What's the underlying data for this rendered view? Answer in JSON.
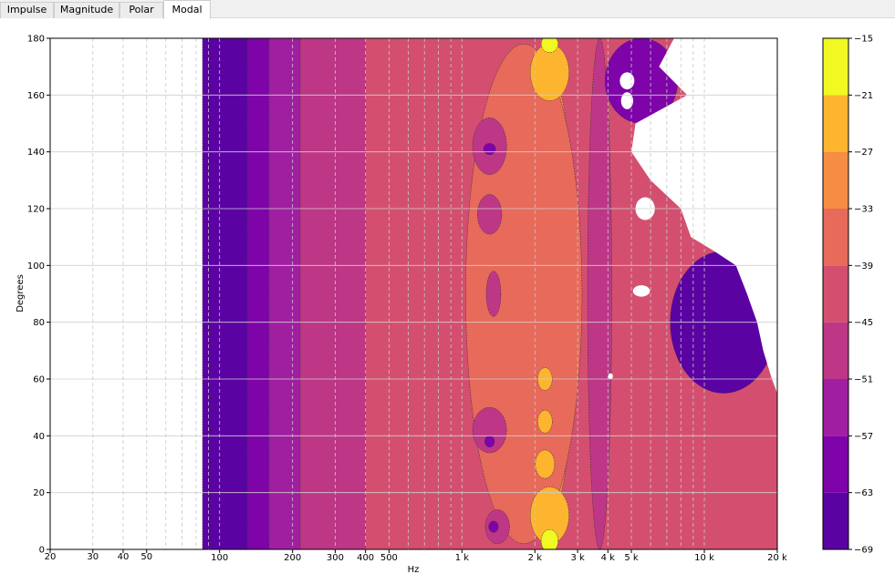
{
  "tabs": [
    {
      "label": "Impulse",
      "active": false
    },
    {
      "label": "Magnitude",
      "active": false
    },
    {
      "label": "Polar",
      "active": false
    },
    {
      "label": "Modal",
      "active": true
    }
  ],
  "chart_data": {
    "type": "heatmap",
    "subtype": "filled-contour",
    "xlabel": "Hz",
    "ylabel": "Degrees",
    "xscale": "log",
    "xlim": [
      20,
      20000
    ],
    "ylim": [
      0,
      180
    ],
    "x_ticks": [
      {
        "value": 20,
        "label": "20"
      },
      {
        "value": 30,
        "label": "30"
      },
      {
        "value": 40,
        "label": "40"
      },
      {
        "value": 50,
        "label": "50"
      },
      {
        "value": 100,
        "label": "100"
      },
      {
        "value": 200,
        "label": "200"
      },
      {
        "value": 300,
        "label": "300"
      },
      {
        "value": 400,
        "label": "400"
      },
      {
        "value": 500,
        "label": "500"
      },
      {
        "value": 1000,
        "label": "1 k"
      },
      {
        "value": 2000,
        "label": "2 k"
      },
      {
        "value": 3000,
        "label": "3 k"
      },
      {
        "value": 4000,
        "label": "4 k"
      },
      {
        "value": 5000,
        "label": "5 k"
      },
      {
        "value": 10000,
        "label": "10 k"
      },
      {
        "value": 20000,
        "label": "20 k"
      }
    ],
    "x_minor_grid": [
      60,
      70,
      80,
      90,
      600,
      700,
      800,
      900,
      6000,
      7000,
      8000,
      9000
    ],
    "y_ticks": [
      0,
      20,
      40,
      60,
      80,
      100,
      120,
      140,
      160,
      180
    ],
    "grid": true,
    "colorbar": {
      "levels": [
        -69,
        -63,
        -57,
        -51,
        -45,
        -39,
        -33,
        -27,
        -21,
        -15
      ],
      "tick_labels": [
        "−69",
        "−63",
        "−57",
        "−51",
        "−45",
        "−39",
        "−33",
        "−27",
        "−21",
        "−15"
      ],
      "colors": [
        "#5b02a3",
        "#7e03a8",
        "#a01fa0",
        "#bd3786",
        "#d44f6f",
        "#e76a5a",
        "#f68d44",
        "#fdb42f",
        "#f0f921"
      ]
    },
    "bands": [
      {
        "level": 0,
        "start": 85,
        "end": 130
      },
      {
        "level": 1,
        "start": 130,
        "end": 160
      },
      {
        "level": 2,
        "start": 160,
        "end": 215
      },
      {
        "level": 3,
        "start": 215,
        "end": 400
      },
      {
        "level": 4,
        "start": 400,
        "end": 900
      }
    ],
    "blobs": [
      {
        "f": 2200,
        "d": 90,
        "hw": 0.13,
        "hh": 82,
        "level": 6
      },
      {
        "f": 1800,
        "d": 90,
        "hw": 0.24,
        "hh": 88,
        "level": 5
      },
      {
        "f": 2300,
        "d": 12,
        "hw": 0.08,
        "hh": 10,
        "level": 7
      },
      {
        "f": 2300,
        "d": 168,
        "hw": 0.08,
        "hh": 10,
        "level": 7
      },
      {
        "f": 2200,
        "d": 60,
        "hw": 0.03,
        "hh": 4,
        "level": 7
      },
      {
        "f": 2200,
        "d": 45,
        "hw": 0.03,
        "hh": 4,
        "level": 7
      },
      {
        "f": 2200,
        "d": 30,
        "hw": 0.04,
        "hh": 5,
        "level": 7
      },
      {
        "f": 2300,
        "d": 3,
        "hw": 0.035,
        "hh": 4,
        "level": 8
      },
      {
        "f": 2300,
        "d": 178,
        "hw": 0.035,
        "hh": 3,
        "level": 8
      },
      {
        "f": 1300,
        "d": 42,
        "hw": 0.07,
        "hh": 8,
        "level": 3
      },
      {
        "f": 1300,
        "d": 142,
        "hw": 0.07,
        "hh": 10,
        "level": 3
      },
      {
        "f": 1300,
        "d": 118,
        "hw": 0.05,
        "hh": 7,
        "level": 3
      },
      {
        "f": 1350,
        "d": 90,
        "hw": 0.03,
        "hh": 8,
        "level": 3
      },
      {
        "f": 1400,
        "d": 8,
        "hw": 0.05,
        "hh": 6,
        "level": 3
      },
      {
        "f": 1300,
        "d": 141,
        "hw": 0.025,
        "hh": 2,
        "level": 1
      },
      {
        "f": 1300,
        "d": 38,
        "hw": 0.02,
        "hh": 2,
        "level": 1
      },
      {
        "f": 1350,
        "d": 8,
        "hw": 0.02,
        "hh": 2,
        "level": 1
      },
      {
        "f": 3700,
        "d": 90,
        "hw": 0.05,
        "hh": 90,
        "level": 3
      },
      {
        "f": 5500,
        "d": 165,
        "hw": 0.15,
        "hh": 15,
        "level": 1
      },
      {
        "f": 12000,
        "d": 80,
        "hw": 0.22,
        "hh": 25,
        "level": 0
      }
    ],
    "white_region": {
      "boundary": [
        [
          180,
          7500
        ],
        [
          170,
          6500
        ],
        [
          160,
          8500
        ],
        [
          150,
          5200
        ],
        [
          140,
          5000
        ],
        [
          130,
          6000
        ],
        [
          120,
          8000
        ],
        [
          110,
          8800
        ],
        [
          105,
          11000
        ],
        [
          100,
          13500
        ],
        [
          90,
          15000
        ],
        [
          80,
          16500
        ],
        [
          70,
          17500
        ],
        [
          60,
          19000
        ],
        [
          55,
          20000
        ]
      ],
      "islands": [
        {
          "f": 4800,
          "d": 165,
          "hw": 0.03,
          "hh": 3
        },
        {
          "f": 4800,
          "d": 158,
          "hw": 0.025,
          "hh": 3
        },
        {
          "f": 5700,
          "d": 120,
          "hw": 0.04,
          "hh": 4
        },
        {
          "f": 5500,
          "d": 91,
          "hw": 0.035,
          "hh": 2
        },
        {
          "f": 4100,
          "d": 61,
          "hw": 0.01,
          "hh": 1
        }
      ]
    }
  }
}
